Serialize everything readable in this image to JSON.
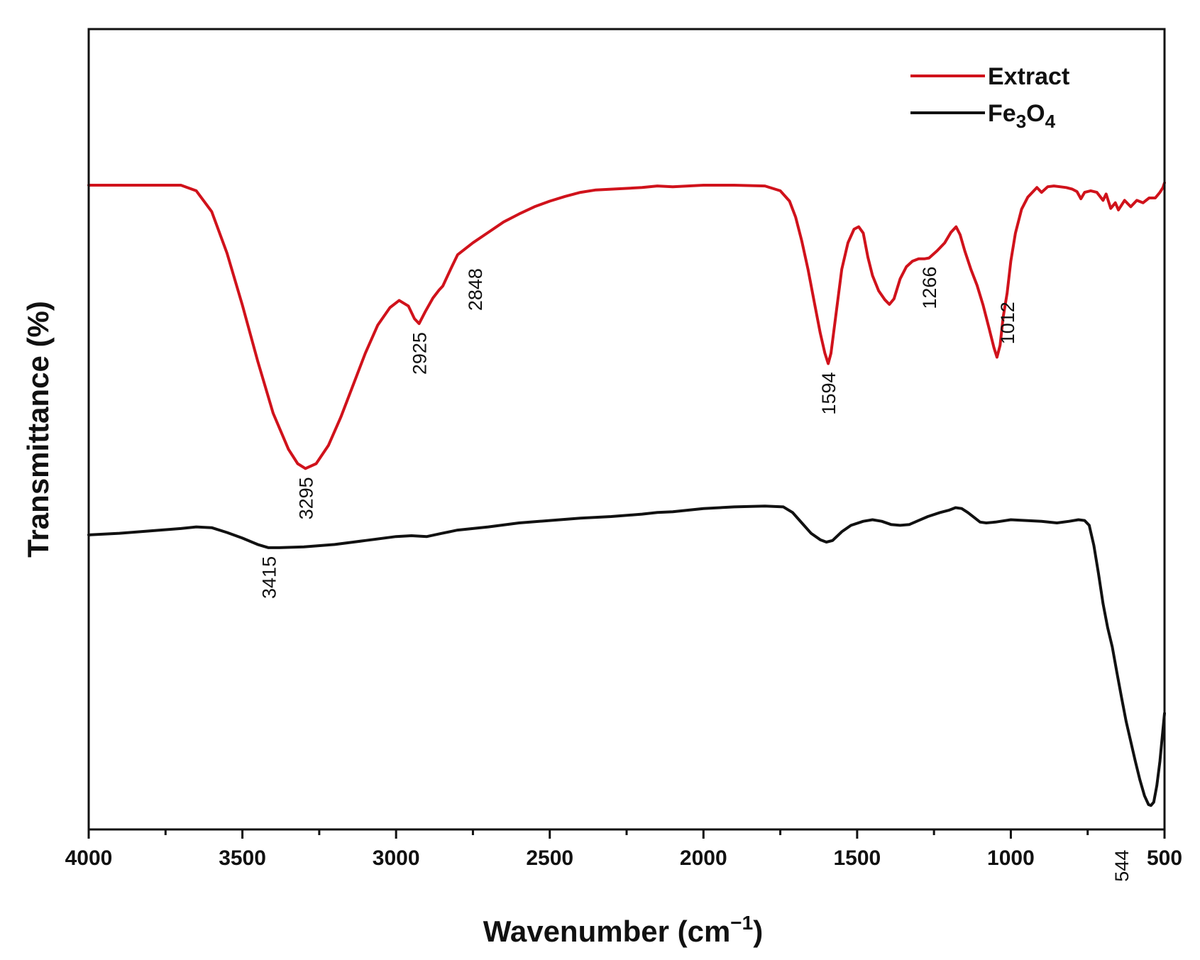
{
  "chart_data": {
    "type": "line",
    "title": "",
    "xlabel": "Wavenumber (cm",
    "xlabel_sup": "−1",
    "xlabel_close": ")",
    "ylabel": "Transmittance (%)",
    "xlim": [
      4000,
      500
    ],
    "ylim": [
      0,
      100
    ],
    "x_ticks": [
      4000,
      3500,
      3000,
      2500,
      2000,
      1500,
      1000,
      500
    ],
    "x_tick_labels": [
      "4000",
      "3500",
      "3000",
      "2500",
      "2000",
      "1500",
      "1000",
      "500"
    ],
    "x_minor_ticks": [
      3750,
      3250,
      2750,
      2250,
      1750,
      1250,
      750
    ],
    "y_ticks": [],
    "grid": false,
    "legend_position": "top-right",
    "colors": {
      "extract": "#d0121b",
      "fe3o4": "#111111",
      "axis": "#111111"
    },
    "series": [
      {
        "key": "extract",
        "name": "Extract",
        "color": "#d0121b",
        "points": [
          [
            4000,
            80.5
          ],
          [
            3700,
            80.5
          ],
          [
            3650,
            79.8
          ],
          [
            3600,
            77.2
          ],
          [
            3550,
            72.0
          ],
          [
            3500,
            65.5
          ],
          [
            3450,
            58.5
          ],
          [
            3400,
            52.0
          ],
          [
            3350,
            47.5
          ],
          [
            3320,
            45.7
          ],
          [
            3295,
            45.1
          ],
          [
            3260,
            45.7
          ],
          [
            3220,
            48.0
          ],
          [
            3180,
            51.5
          ],
          [
            3140,
            55.5
          ],
          [
            3100,
            59.5
          ],
          [
            3060,
            63.0
          ],
          [
            3020,
            65.2
          ],
          [
            2990,
            66.1
          ],
          [
            2960,
            65.4
          ],
          [
            2940,
            63.8
          ],
          [
            2925,
            63.2
          ],
          [
            2905,
            64.7
          ],
          [
            2880,
            66.4
          ],
          [
            2860,
            67.4
          ],
          [
            2848,
            67.9
          ],
          [
            2820,
            70.2
          ],
          [
            2800,
            71.8
          ],
          [
            2750,
            73.3
          ],
          [
            2700,
            74.6
          ],
          [
            2650,
            75.9
          ],
          [
            2600,
            76.9
          ],
          [
            2550,
            77.8
          ],
          [
            2500,
            78.5
          ],
          [
            2450,
            79.1
          ],
          [
            2400,
            79.6
          ],
          [
            2350,
            79.9
          ],
          [
            2300,
            80.0
          ],
          [
            2200,
            80.2
          ],
          [
            2150,
            80.4
          ],
          [
            2100,
            80.3
          ],
          [
            2050,
            80.4
          ],
          [
            2000,
            80.5
          ],
          [
            1900,
            80.5
          ],
          [
            1800,
            80.4
          ],
          [
            1750,
            79.8
          ],
          [
            1720,
            78.5
          ],
          [
            1700,
            76.5
          ],
          [
            1680,
            73.5
          ],
          [
            1660,
            70.0
          ],
          [
            1640,
            66.0
          ],
          [
            1620,
            62.0
          ],
          [
            1605,
            59.5
          ],
          [
            1594,
            58.2
          ],
          [
            1585,
            59.5
          ],
          [
            1570,
            64.0
          ],
          [
            1550,
            70.0
          ],
          [
            1530,
            73.3
          ],
          [
            1510,
            75.0
          ],
          [
            1495,
            75.3
          ],
          [
            1480,
            74.5
          ],
          [
            1465,
            71.5
          ],
          [
            1450,
            69.2
          ],
          [
            1430,
            67.3
          ],
          [
            1410,
            66.2
          ],
          [
            1395,
            65.6
          ],
          [
            1380,
            66.3
          ],
          [
            1360,
            68.8
          ],
          [
            1340,
            70.3
          ],
          [
            1320,
            71.0
          ],
          [
            1300,
            71.3
          ],
          [
            1280,
            71.3
          ],
          [
            1266,
            71.4
          ],
          [
            1240,
            72.3
          ],
          [
            1215,
            73.3
          ],
          [
            1195,
            74.6
          ],
          [
            1178,
            75.3
          ],
          [
            1165,
            74.3
          ],
          [
            1150,
            72.3
          ],
          [
            1130,
            70.0
          ],
          [
            1110,
            68.0
          ],
          [
            1090,
            65.5
          ],
          [
            1070,
            62.5
          ],
          [
            1055,
            60.2
          ],
          [
            1045,
            59.0
          ],
          [
            1035,
            60.5
          ],
          [
            1025,
            64.0
          ],
          [
            1012,
            67.0
          ],
          [
            1000,
            71.0
          ],
          [
            985,
            74.5
          ],
          [
            965,
            77.5
          ],
          [
            945,
            79.0
          ],
          [
            930,
            79.6
          ],
          [
            915,
            80.2
          ],
          [
            900,
            79.6
          ],
          [
            880,
            80.3
          ],
          [
            860,
            80.4
          ],
          [
            840,
            80.3
          ],
          [
            820,
            80.2
          ],
          [
            800,
            80.0
          ],
          [
            785,
            79.7
          ],
          [
            772,
            78.8
          ],
          [
            760,
            79.6
          ],
          [
            740,
            79.8
          ],
          [
            720,
            79.6
          ],
          [
            700,
            78.6
          ],
          [
            690,
            79.4
          ],
          [
            675,
            77.6
          ],
          [
            660,
            78.3
          ],
          [
            650,
            77.4
          ],
          [
            630,
            78.6
          ],
          [
            610,
            77.8
          ],
          [
            590,
            78.6
          ],
          [
            570,
            78.3
          ],
          [
            550,
            78.9
          ],
          [
            530,
            78.9
          ],
          [
            515,
            79.6
          ],
          [
            505,
            80.2
          ],
          [
            500,
            80.8
          ]
        ]
      },
      {
        "key": "fe3o4",
        "name": "Fe₃O₄",
        "color": "#111111",
        "points": [
          [
            4000,
            36.8
          ],
          [
            3900,
            37.0
          ],
          [
            3800,
            37.3
          ],
          [
            3700,
            37.6
          ],
          [
            3650,
            37.8
          ],
          [
            3600,
            37.7
          ],
          [
            3550,
            37.1
          ],
          [
            3500,
            36.4
          ],
          [
            3450,
            35.6
          ],
          [
            3415,
            35.2
          ],
          [
            3380,
            35.2
          ],
          [
            3300,
            35.3
          ],
          [
            3200,
            35.6
          ],
          [
            3100,
            36.1
          ],
          [
            3000,
            36.6
          ],
          [
            2950,
            36.7
          ],
          [
            2900,
            36.6
          ],
          [
            2850,
            37.0
          ],
          [
            2800,
            37.4
          ],
          [
            2700,
            37.8
          ],
          [
            2600,
            38.3
          ],
          [
            2500,
            38.6
          ],
          [
            2400,
            38.9
          ],
          [
            2300,
            39.1
          ],
          [
            2200,
            39.4
          ],
          [
            2150,
            39.6
          ],
          [
            2100,
            39.7
          ],
          [
            2000,
            40.1
          ],
          [
            1900,
            40.3
          ],
          [
            1800,
            40.4
          ],
          [
            1740,
            40.3
          ],
          [
            1710,
            39.6
          ],
          [
            1680,
            38.3
          ],
          [
            1650,
            37.0
          ],
          [
            1620,
            36.2
          ],
          [
            1600,
            35.9
          ],
          [
            1580,
            36.1
          ],
          [
            1550,
            37.2
          ],
          [
            1520,
            38.0
          ],
          [
            1480,
            38.5
          ],
          [
            1450,
            38.7
          ],
          [
            1420,
            38.5
          ],
          [
            1390,
            38.1
          ],
          [
            1360,
            38.0
          ],
          [
            1330,
            38.1
          ],
          [
            1300,
            38.6
          ],
          [
            1270,
            39.1
          ],
          [
            1230,
            39.6
          ],
          [
            1200,
            39.9
          ],
          [
            1180,
            40.2
          ],
          [
            1160,
            40.1
          ],
          [
            1140,
            39.6
          ],
          [
            1120,
            39.0
          ],
          [
            1100,
            38.4
          ],
          [
            1080,
            38.3
          ],
          [
            1050,
            38.4
          ],
          [
            1000,
            38.7
          ],
          [
            950,
            38.6
          ],
          [
            900,
            38.5
          ],
          [
            850,
            38.3
          ],
          [
            810,
            38.5
          ],
          [
            780,
            38.7
          ],
          [
            760,
            38.6
          ],
          [
            745,
            38.0
          ],
          [
            730,
            35.5
          ],
          [
            715,
            32.0
          ],
          [
            700,
            28.2
          ],
          [
            685,
            25.2
          ],
          [
            670,
            22.8
          ],
          [
            655,
            19.6
          ],
          [
            640,
            16.5
          ],
          [
            625,
            13.5
          ],
          [
            610,
            11.0
          ],
          [
            595,
            8.5
          ],
          [
            580,
            6.2
          ],
          [
            565,
            4.2
          ],
          [
            552,
            3.1
          ],
          [
            544,
            3.0
          ],
          [
            535,
            3.4
          ],
          [
            525,
            5.5
          ],
          [
            515,
            8.5
          ],
          [
            505,
            12.5
          ],
          [
            500,
            14.5
          ]
        ]
      }
    ],
    "annotations": [
      {
        "series": "extract",
        "x": 3295,
        "text": "3295",
        "place": "below"
      },
      {
        "series": "extract",
        "x": 2925,
        "text": "2925",
        "place": "below"
      },
      {
        "series": "extract",
        "x": 2848,
        "text": "2848",
        "place": "right"
      },
      {
        "series": "extract",
        "x": 1594,
        "text": "1594",
        "place": "below"
      },
      {
        "series": "extract",
        "x": 1266,
        "text": "1266",
        "place": "below"
      },
      {
        "series": "extract",
        "x": 1012,
        "text": "1012",
        "place": "below"
      },
      {
        "series": "fe3o4",
        "x": 3415,
        "text": "3415",
        "place": "below"
      },
      {
        "series": "fe3o4",
        "x": 544,
        "text": "544",
        "place": "left"
      }
    ],
    "legend": [
      {
        "series": "extract",
        "label": "Extract"
      },
      {
        "series": "fe3o4",
        "label_main": "Fe",
        "sub1": "3",
        "label_mid": "O",
        "sub2": "4"
      }
    ]
  }
}
